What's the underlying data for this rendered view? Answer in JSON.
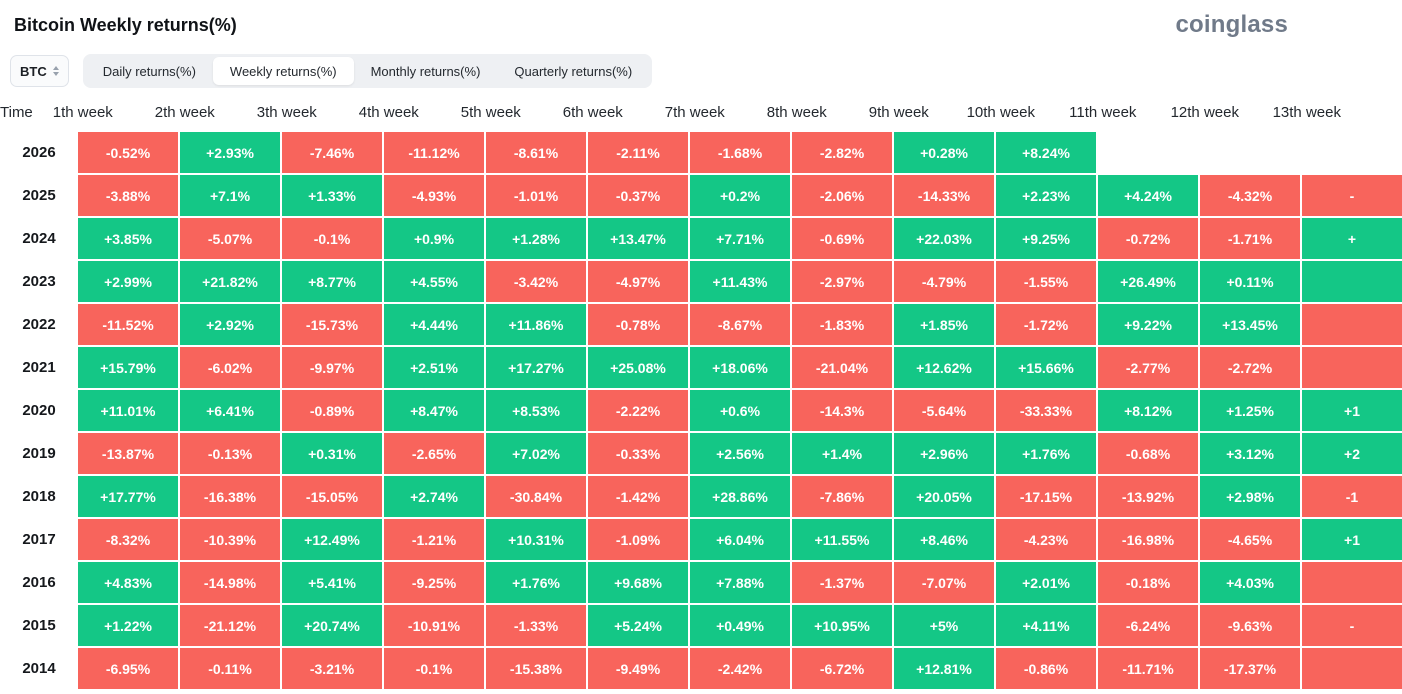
{
  "header": {
    "title": "Bitcoin Weekly returns(%)",
    "logo": "coinglass"
  },
  "controls": {
    "coin": "BTC",
    "tabs": [
      {
        "label": "Daily returns(%)",
        "active": false
      },
      {
        "label": "Weekly returns(%)",
        "active": true
      },
      {
        "label": "Monthly returns(%)",
        "active": false
      },
      {
        "label": "Quarterly returns(%)",
        "active": false
      }
    ]
  },
  "chart_data": {
    "type": "heatmap",
    "title": "Bitcoin Weekly returns(%)",
    "time_column_header": "Time",
    "columns": [
      "1th week",
      "2th week",
      "3th week",
      "4th week",
      "5th week",
      "6th week",
      "7th week",
      "8th week",
      "9th week",
      "10th week",
      "11th week",
      "12th week",
      "13th week"
    ],
    "colors": {
      "positive": "#14C786",
      "negative": "#F8645C"
    },
    "rows": [
      {
        "year": "2026",
        "values": [
          "-0.52%",
          "+2.93%",
          "-7.46%",
          "-11.12%",
          "-8.61%",
          "-2.11%",
          "-1.68%",
          "-2.82%",
          "+0.28%",
          "+8.24%",
          null,
          null
        ],
        "week13": null
      },
      {
        "year": "2025",
        "values": [
          "-3.88%",
          "+7.1%",
          "+1.33%",
          "-4.93%",
          "-1.01%",
          "-0.37%",
          "+0.2%",
          "-2.06%",
          "-14.33%",
          "+2.23%",
          "+4.24%",
          "-4.32%"
        ],
        "week13": {
          "text": "-",
          "tone": "neg"
        }
      },
      {
        "year": "2024",
        "values": [
          "+3.85%",
          "-5.07%",
          "-0.1%",
          "+0.9%",
          "+1.28%",
          "+13.47%",
          "+7.71%",
          "-0.69%",
          "+22.03%",
          "+9.25%",
          "-0.72%",
          "-1.71%"
        ],
        "week13": {
          "text": "+",
          "tone": "pos"
        }
      },
      {
        "year": "2023",
        "values": [
          "+2.99%",
          "+21.82%",
          "+8.77%",
          "+4.55%",
          "-3.42%",
          "-4.97%",
          "+11.43%",
          "-2.97%",
          "-4.79%",
          "-1.55%",
          "+26.49%",
          "+0.11%"
        ],
        "week13": {
          "text": "",
          "tone": "pos"
        }
      },
      {
        "year": "2022",
        "values": [
          "-11.52%",
          "+2.92%",
          "-15.73%",
          "+4.44%",
          "+11.86%",
          "-0.78%",
          "-8.67%",
          "-1.83%",
          "+1.85%",
          "-1.72%",
          "+9.22%",
          "+13.45%"
        ],
        "week13": {
          "text": "",
          "tone": "neg"
        }
      },
      {
        "year": "2021",
        "values": [
          "+15.79%",
          "-6.02%",
          "-9.97%",
          "+2.51%",
          "+17.27%",
          "+25.08%",
          "+18.06%",
          "-21.04%",
          "+12.62%",
          "+15.66%",
          "-2.77%",
          "-2.72%"
        ],
        "week13": {
          "text": "",
          "tone": "neg"
        }
      },
      {
        "year": "2020",
        "values": [
          "+11.01%",
          "+6.41%",
          "-0.89%",
          "+8.47%",
          "+8.53%",
          "-2.22%",
          "+0.6%",
          "-14.3%",
          "-5.64%",
          "-33.33%",
          "+8.12%",
          "+1.25%"
        ],
        "week13": {
          "text": "+1",
          "tone": "pos"
        }
      },
      {
        "year": "2019",
        "values": [
          "-13.87%",
          "-0.13%",
          "+0.31%",
          "-2.65%",
          "+7.02%",
          "-0.33%",
          "+2.56%",
          "+1.4%",
          "+2.96%",
          "+1.76%",
          "-0.68%",
          "+3.12%"
        ],
        "week13": {
          "text": "+2",
          "tone": "pos"
        }
      },
      {
        "year": "2018",
        "values": [
          "+17.77%",
          "-16.38%",
          "-15.05%",
          "+2.74%",
          "-30.84%",
          "-1.42%",
          "+28.86%",
          "-7.86%",
          "+20.05%",
          "-17.15%",
          "-13.92%",
          "+2.98%"
        ],
        "week13": {
          "text": "-1",
          "tone": "neg"
        }
      },
      {
        "year": "2017",
        "values": [
          "-8.32%",
          "-10.39%",
          "+12.49%",
          "-1.21%",
          "+10.31%",
          "-1.09%",
          "+6.04%",
          "+11.55%",
          "+8.46%",
          "-4.23%",
          "-16.98%",
          "-4.65%"
        ],
        "week13": {
          "text": "+1",
          "tone": "pos"
        }
      },
      {
        "year": "2016",
        "values": [
          "+4.83%",
          "-14.98%",
          "+5.41%",
          "-9.25%",
          "+1.76%",
          "+9.68%",
          "+7.88%",
          "-1.37%",
          "-7.07%",
          "+2.01%",
          "-0.18%",
          "+4.03%"
        ],
        "week13": {
          "text": "",
          "tone": "neg"
        }
      },
      {
        "year": "2015",
        "values": [
          "+1.22%",
          "-21.12%",
          "+20.74%",
          "-10.91%",
          "-1.33%",
          "+5.24%",
          "+0.49%",
          "+10.95%",
          "+5%",
          "+4.11%",
          "-6.24%",
          "-9.63%"
        ],
        "week13": {
          "text": "-",
          "tone": "neg"
        }
      },
      {
        "year": "2014",
        "values": [
          "-6.95%",
          "-0.11%",
          "-3.21%",
          "-0.1%",
          "-15.38%",
          "-9.49%",
          "-2.42%",
          "-6.72%",
          "+12.81%",
          "-0.86%",
          "-11.71%",
          "-17.37%"
        ],
        "week13": {
          "text": "",
          "tone": "neg"
        }
      }
    ]
  }
}
